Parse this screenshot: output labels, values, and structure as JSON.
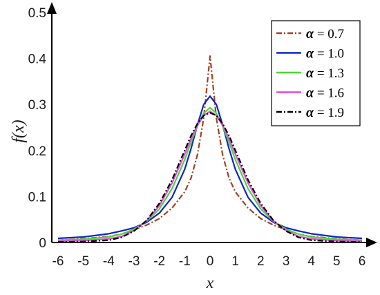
{
  "chart_data": {
    "type": "line",
    "xlabel": "x",
    "ylabel": "f(x)",
    "xlim": [
      -6,
      6
    ],
    "ylim": [
      0,
      0.5
    ],
    "xticks": [
      "-6",
      "-5",
      "-4",
      "-3",
      "-2",
      "-1",
      "0",
      "1",
      "2",
      "3",
      "4",
      "5",
      "6"
    ],
    "yticks": [
      "0",
      "0.1",
      "0.2",
      "0.3",
      "0.4",
      "0.5"
    ],
    "grid": false,
    "legend_position": "top-right",
    "x": [
      -6,
      -5,
      -4,
      -3.5,
      -3,
      -2.5,
      -2,
      -1.5,
      -1,
      -0.75,
      -0.5,
      -0.25,
      0,
      0.25,
      0.5,
      0.75,
      1,
      1.5,
      2,
      2.5,
      3,
      3.5,
      4,
      5,
      6
    ],
    "series": [
      {
        "name": "α = 0.7",
        "color": "#a0421e",
        "dash": "dashdot",
        "values": [
          0.005,
          0.008,
          0.013,
          0.018,
          0.028,
          0.038,
          0.052,
          0.075,
          0.11,
          0.14,
          0.19,
          0.27,
          0.405,
          0.27,
          0.19,
          0.14,
          0.11,
          0.075,
          0.052,
          0.038,
          0.028,
          0.018,
          0.013,
          0.008,
          0.005
        ]
      },
      {
        "name": "α = 1.0",
        "color": "#0d24c8",
        "dash": "solid",
        "values": [
          0.009,
          0.012,
          0.019,
          0.025,
          0.032,
          0.044,
          0.064,
          0.098,
          0.159,
          0.204,
          0.255,
          0.3,
          0.318,
          0.3,
          0.255,
          0.204,
          0.159,
          0.098,
          0.064,
          0.044,
          0.032,
          0.025,
          0.019,
          0.012,
          0.009
        ]
      },
      {
        "name": "α = 1.3",
        "color": "#4fd635",
        "dash": "solid",
        "values": [
          0.005,
          0.007,
          0.012,
          0.018,
          0.029,
          0.046,
          0.073,
          0.117,
          0.18,
          0.218,
          0.253,
          0.281,
          0.293,
          0.281,
          0.253,
          0.218,
          0.18,
          0.117,
          0.073,
          0.046,
          0.029,
          0.018,
          0.012,
          0.007,
          0.005
        ]
      },
      {
        "name": "α = 1.6",
        "color": "#e14ae1",
        "dash": "solid",
        "values": [
          0.003,
          0.004,
          0.008,
          0.013,
          0.026,
          0.047,
          0.08,
          0.129,
          0.192,
          0.226,
          0.255,
          0.276,
          0.285,
          0.276,
          0.255,
          0.226,
          0.192,
          0.129,
          0.08,
          0.047,
          0.026,
          0.013,
          0.008,
          0.004,
          0.003
        ]
      },
      {
        "name": "α = 1.9",
        "color": "#000000",
        "dash": "dashdot",
        "values": [
          0.001,
          0.002,
          0.005,
          0.011,
          0.025,
          0.048,
          0.085,
          0.136,
          0.2,
          0.232,
          0.258,
          0.276,
          0.282,
          0.276,
          0.258,
          0.232,
          0.2,
          0.136,
          0.085,
          0.048,
          0.025,
          0.011,
          0.005,
          0.002,
          0.001
        ]
      }
    ]
  }
}
